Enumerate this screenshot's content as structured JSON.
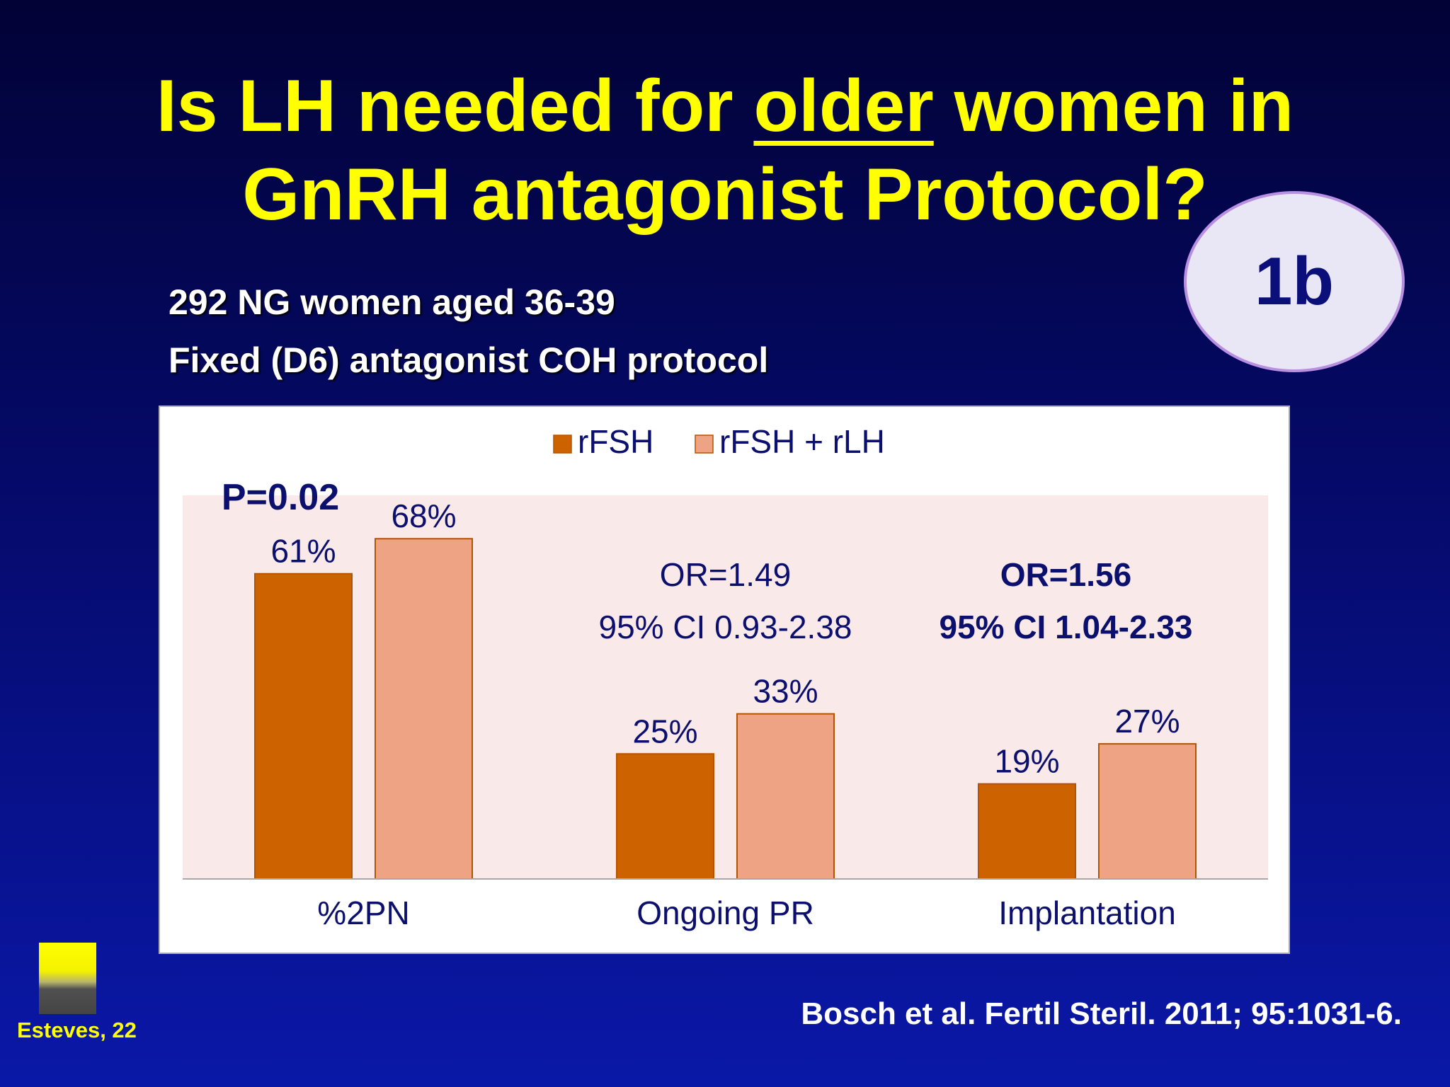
{
  "slide": {
    "title_pre": "Is LH needed for ",
    "title_underlined": "older",
    "title_post": " women in",
    "title_line2": "GnRH antagonist Protocol?",
    "badge": "1b",
    "subtitle_1": "292 NG women aged 36-39",
    "subtitle_2": "Fixed (D6) antagonist COH protocol",
    "citation": "Bosch et al. Fertil Steril. 2011; 95:1031-6.",
    "footer_tag": "Esteves, 22"
  },
  "chart_data": {
    "type": "bar",
    "categories": [
      "%2PN",
      "Ongoing PR",
      "Implantation"
    ],
    "series": [
      {
        "name": "rFSH",
        "values": [
          61,
          25,
          19
        ],
        "labels": [
          "61%",
          "25%",
          "19%"
        ],
        "color": "#cc6200"
      },
      {
        "name": "rFSH + rLH",
        "values": [
          68,
          33,
          27
        ],
        "labels": [
          "68%",
          "33%",
          "27%"
        ],
        "color": "#eea385"
      }
    ],
    "ylim": [
      0,
      80
    ],
    "plot_background": "#fae9e9",
    "grid": false,
    "legend_position": "top",
    "annotations": [
      {
        "category": "%2PN",
        "lines": [
          "P=0.02"
        ],
        "bold": true
      },
      {
        "category": "Ongoing PR",
        "lines": [
          "OR=1.49",
          "95% CI 0.93-2.38"
        ],
        "bold": false
      },
      {
        "category": "Implantation",
        "lines": [
          "OR=1.56",
          "95% CI 1.04-2.33"
        ],
        "bold": true
      }
    ]
  }
}
